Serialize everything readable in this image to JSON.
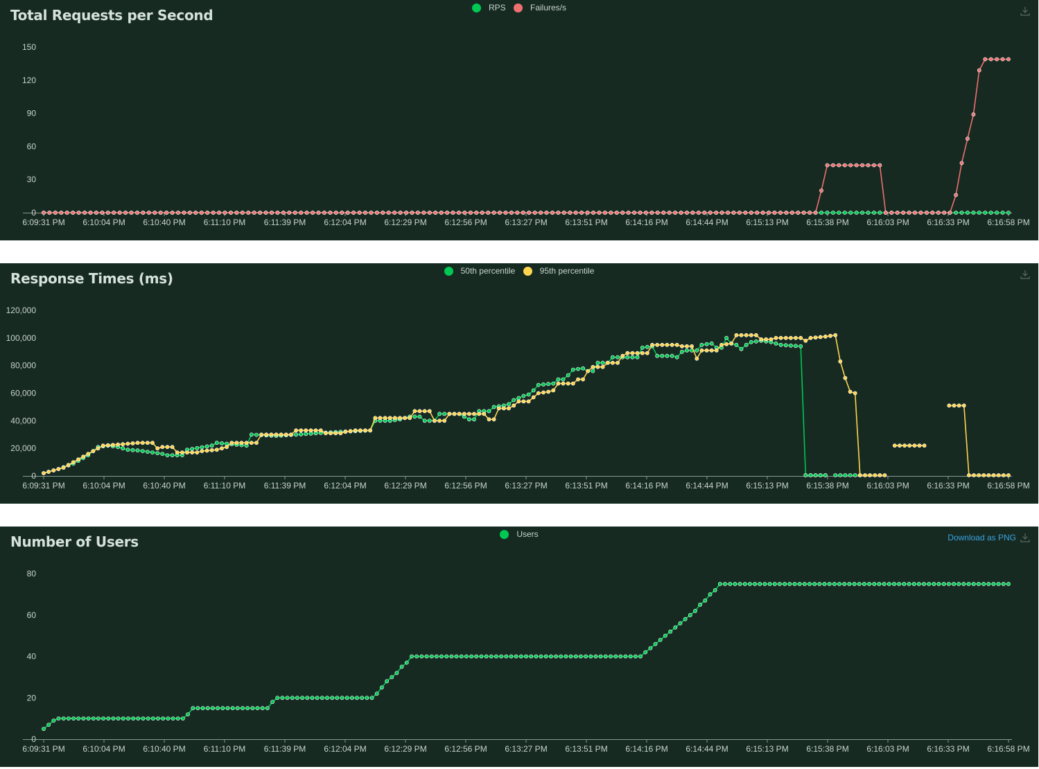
{
  "time_labels": [
    "6:09:31 PM",
    "6:10:04 PM",
    "6:10:40 PM",
    "6:11:10 PM",
    "6:11:39 PM",
    "6:12:04 PM",
    "6:12:29 PM",
    "6:12:56 PM",
    "6:13:27 PM",
    "6:13:51 PM",
    "6:14:16 PM",
    "6:14:44 PM",
    "6:15:13 PM",
    "6:15:38 PM",
    "6:16:03 PM",
    "6:16:33 PM",
    "6:16:58 PM"
  ],
  "download_label": "Download as PNG",
  "colors": {
    "bg": "#162a22",
    "axis": "#8b9a93",
    "green": "#00c853",
    "red": "#ef7070",
    "yellow": "#ffd54f"
  },
  "chart_data": [
    {
      "type": "line",
      "title": "Total Requests per Second",
      "ylim": [
        0,
        150
      ],
      "yticks": [
        0,
        30,
        60,
        90,
        120,
        150
      ],
      "series": [
        {
          "name": "RPS",
          "color": "#00c853",
          "segments": [
            [
              [
                0,
                0
              ],
              [
                165,
                0
              ]
            ]
          ]
        },
        {
          "name": "Failures/s",
          "color": "#ef7070",
          "segments": [
            [
              [
                0,
                0
              ],
              [
                132,
                0
              ],
              [
                133,
                20
              ],
              [
                134,
                43
              ],
              [
                143,
                43
              ],
              [
                144,
                0
              ],
              [
                155,
                0
              ],
              [
                156,
                16
              ],
              [
                157,
                45
              ],
              [
                158,
                67
              ],
              [
                159,
                89
              ],
              [
                160,
                129
              ],
              [
                161,
                139
              ],
              [
                165,
                139
              ]
            ]
          ]
        }
      ]
    },
    {
      "type": "line",
      "title": "Response Times (ms)",
      "ylim": [
        0,
        120000
      ],
      "yticks": [
        0,
        20000,
        40000,
        60000,
        80000,
        100000,
        120000
      ],
      "series": [
        {
          "name": "50th percentile",
          "color": "#00c853",
          "segments": [
            [
              [
                0,
                2000
              ],
              [
                3,
                5000
              ],
              [
                6,
                9000
              ],
              [
                9,
                15000
              ],
              [
                11,
                21000
              ],
              [
                13,
                22000
              ],
              [
                15,
                21000
              ],
              [
                17,
                19000
              ],
              [
                19,
                18500
              ],
              [
                21,
                17500
              ],
              [
                23,
                16500
              ],
              [
                24,
                16000
              ],
              [
                25,
                15000
              ],
              [
                28,
                15000
              ],
              [
                29,
                19000
              ],
              [
                34,
                22000
              ],
              [
                35,
                24000
              ],
              [
                38,
                23000
              ],
              [
                41,
                22000
              ],
              [
                42,
                30000
              ],
              [
                47,
                29000
              ],
              [
                51,
                30000
              ],
              [
                55,
                31000
              ],
              [
                60,
                32000
              ],
              [
                66,
                33000
              ],
              [
                67,
                40000
              ],
              [
                70,
                40000
              ],
              [
                72,
                41000
              ],
              [
                74,
                43000
              ],
              [
                76,
                43000
              ],
              [
                77,
                40000
              ],
              [
                79,
                40000
              ],
              [
                80,
                45000
              ],
              [
                84,
                45000
              ],
              [
                86,
                41000
              ],
              [
                87,
                41000
              ],
              [
                88,
                47000
              ],
              [
                90,
                47000
              ],
              [
                91,
                50000
              ],
              [
                93,
                51000
              ],
              [
                94,
                52000
              ],
              [
                95,
                55000
              ],
              [
                97,
                58000
              ],
              [
                98,
                59000
              ],
              [
                99,
                62000
              ],
              [
                100,
                66000
              ],
              [
                103,
                67000
              ],
              [
                104,
                70000
              ],
              [
                105,
                70000
              ],
              [
                106,
                73000
              ],
              [
                107,
                77000
              ],
              [
                109,
                78000
              ],
              [
                110,
                76000
              ],
              [
                111,
                76000
              ],
              [
                112,
                82000
              ],
              [
                114,
                82000
              ],
              [
                115,
                86000
              ],
              [
                120,
                86000
              ],
              [
                121,
                93000
              ],
              [
                123,
                94000
              ],
              [
                124,
                87000
              ],
              [
                127,
                87000
              ],
              [
                128,
                86000
              ],
              [
                129,
                90000
              ],
              [
                130,
                91000
              ],
              [
                132,
                91000
              ],
              [
                133,
                95000
              ],
              [
                135,
                96000
              ],
              [
                136,
                93000
              ],
              [
                137,
                93000
              ],
              [
                138,
                100000
              ],
              [
                139,
                96000
              ],
              [
                140,
                95000
              ],
              [
                141,
                92000
              ],
              [
                142,
                95000
              ],
              [
                143,
                97000
              ],
              [
                145,
                98000
              ],
              [
                147,
                97000
              ],
              [
                149,
                95000
              ],
              [
                153,
                94000
              ],
              [
                154,
                500
              ],
              [
                158,
                500
              ]
            ],
            [
              [
                154,
                500
              ],
              [
                158,
                500
              ]
            ],
            [
              [
                160,
                500
              ],
              [
                165,
                500
              ]
            ]
          ]
        },
        {
          "name": "95th percentile",
          "color": "#ffd54f",
          "segments": [
            [
              [
                0,
                2000
              ],
              [
                2,
                4000
              ],
              [
                4,
                6000
              ],
              [
                6,
                10000
              ],
              [
                8,
                14000
              ],
              [
                9,
                16000
              ],
              [
                11,
                20000
              ],
              [
                12,
                22000
              ],
              [
                16,
                23000
              ],
              [
                19,
                24000
              ],
              [
                22,
                24000
              ],
              [
                23,
                20000
              ],
              [
                24,
                21000
              ],
              [
                26,
                21000
              ],
              [
                27,
                17000
              ],
              [
                31,
                17000
              ],
              [
                32,
                18000
              ],
              [
                35,
                19000
              ],
              [
                36,
                20000
              ],
              [
                37,
                21000
              ],
              [
                38,
                24000
              ],
              [
                43,
                24000
              ],
              [
                44,
                30000
              ],
              [
                50,
                30000
              ],
              [
                51,
                33000
              ],
              [
                56,
                33000
              ],
              [
                57,
                31000
              ],
              [
                60,
                31000
              ],
              [
                61,
                32000
              ],
              [
                63,
                33000
              ],
              [
                66,
                33000
              ],
              [
                67,
                42000
              ],
              [
                74,
                42000
              ],
              [
                75,
                47000
              ],
              [
                78,
                47000
              ],
              [
                79,
                40000
              ],
              [
                81,
                40000
              ],
              [
                82,
                45000
              ],
              [
                89,
                45000
              ],
              [
                90,
                41000
              ],
              [
                91,
                41000
              ],
              [
                92,
                49000
              ],
              [
                94,
                49000
              ],
              [
                95,
                51000
              ],
              [
                96,
                54000
              ],
              [
                98,
                54000
              ],
              [
                99,
                57000
              ],
              [
                100,
                60000
              ],
              [
                102,
                61000
              ],
              [
                103,
                62000
              ],
              [
                104,
                67000
              ],
              [
                107,
                67000
              ],
              [
                108,
                70000
              ],
              [
                109,
                70000
              ],
              [
                110,
                76000
              ],
              [
                111,
                79000
              ],
              [
                113,
                79000
              ],
              [
                114,
                82000
              ],
              [
                116,
                82000
              ],
              [
                117,
                87000
              ],
              [
                118,
                89000
              ],
              [
                121,
                89000
              ],
              [
                122,
                89000
              ],
              [
                123,
                95000
              ],
              [
                128,
                95000
              ],
              [
                129,
                94000
              ],
              [
                131,
                94000
              ],
              [
                132,
                85000
              ],
              [
                133,
                91000
              ],
              [
                136,
                91000
              ],
              [
                137,
                95000
              ],
              [
                139,
                96000
              ],
              [
                140,
                102000
              ],
              [
                144,
                102000
              ],
              [
                145,
                99000
              ],
              [
                147,
                99000
              ],
              [
                148,
                100000
              ],
              [
                153,
                100000
              ],
              [
                154,
                98000
              ],
              [
                155,
                100000
              ],
              [
                158,
                101000
              ],
              [
                160,
                102000
              ],
              [
                161,
                83000
              ],
              [
                162,
                71000
              ],
              [
                163,
                61000
              ],
              [
                164,
                60000
              ],
              [
                165,
                500
              ],
              [
                170,
                500
              ]
            ],
            [
              [
                172,
                22000
              ],
              [
                178,
                22000
              ]
            ],
            [
              [
                183,
                51000
              ],
              [
                186,
                51000
              ],
              [
                187,
                500
              ],
              [
                195,
                500
              ]
            ]
          ]
        }
      ]
    },
    {
      "type": "line",
      "title": "Number of Users",
      "ylim": [
        0,
        80
      ],
      "yticks": [
        0,
        20,
        40,
        60,
        80
      ],
      "series": [
        {
          "name": "Users",
          "color": "#00c853",
          "segments": [
            [
              [
                0,
                5
              ],
              [
                1,
                7
              ],
              [
                2,
                9
              ],
              [
                3,
                10
              ],
              [
                28,
                10
              ],
              [
                29,
                12
              ],
              [
                30,
                15
              ],
              [
                45,
                15
              ],
              [
                46,
                18
              ],
              [
                47,
                20
              ],
              [
                66,
                20
              ],
              [
                67,
                22
              ],
              [
                68,
                25
              ],
              [
                69,
                28
              ],
              [
                70,
                30
              ],
              [
                71,
                32
              ],
              [
                72,
                35
              ],
              [
                73,
                37
              ],
              [
                74,
                40
              ],
              [
                120,
                40
              ],
              [
                121,
                42
              ],
              [
                122,
                44
              ],
              [
                123,
                46
              ],
              [
                124,
                48
              ],
              [
                125,
                50
              ],
              [
                126,
                52
              ],
              [
                127,
                54
              ],
              [
                128,
                56
              ],
              [
                129,
                58
              ],
              [
                130,
                60
              ],
              [
                131,
                62
              ],
              [
                132,
                65
              ],
              [
                133,
                67
              ],
              [
                134,
                70
              ],
              [
                135,
                72
              ],
              [
                136,
                75
              ],
              [
                194,
                75
              ]
            ]
          ]
        }
      ]
    }
  ]
}
